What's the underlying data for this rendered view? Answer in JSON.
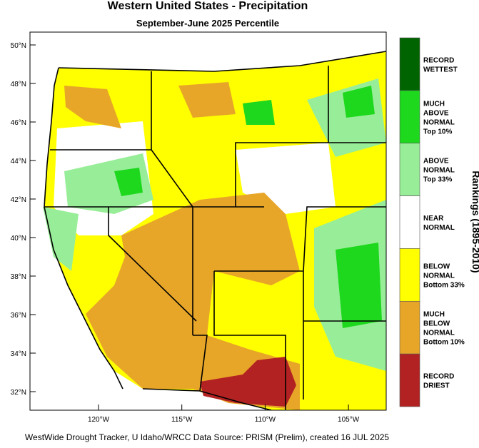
{
  "header": {
    "title": "Western United States - Precipitation",
    "subtitle": "September-June 2025 Percentile"
  },
  "map": {
    "lat_ticks": [
      "50°N",
      "48°N",
      "46°N",
      "44°N",
      "42°N",
      "40°N",
      "38°N",
      "36°N",
      "34°N",
      "32°N"
    ],
    "lon_ticks": [
      "120°W",
      "115°W",
      "110°W",
      "105°W"
    ]
  },
  "legend": {
    "title": "Rankings (1895-2010)",
    "items": [
      {
        "lines": [
          "RECORD",
          "WETTEST"
        ],
        "color": "#006400"
      },
      {
        "lines": [
          "MUCH",
          "ABOVE",
          "NORMAL",
          "Top 10%"
        ],
        "color": "#1ed81e"
      },
      {
        "lines": [
          "ABOVE",
          "NORMAL",
          "Top 33%"
        ],
        "color": "#98ee98"
      },
      {
        "lines": [
          "NEAR",
          "NORMAL"
        ],
        "color": "#ffffff"
      },
      {
        "lines": [
          "BELOW",
          "NORMAL",
          "Bottom 33%"
        ],
        "color": "#ffff00"
      },
      {
        "lines": [
          "MUCH",
          "BELOW",
          "NORMAL",
          "Bottom 10%"
        ],
        "color": "#e8a628"
      },
      {
        "lines": [
          "RECORD",
          "DRIEST"
        ],
        "color": "#b22222"
      }
    ]
  },
  "footer": "WestWide Drought Tracker, U Idaho/WRCC Data Source: PRISM (Prelim), created 16 JUL 2025"
}
